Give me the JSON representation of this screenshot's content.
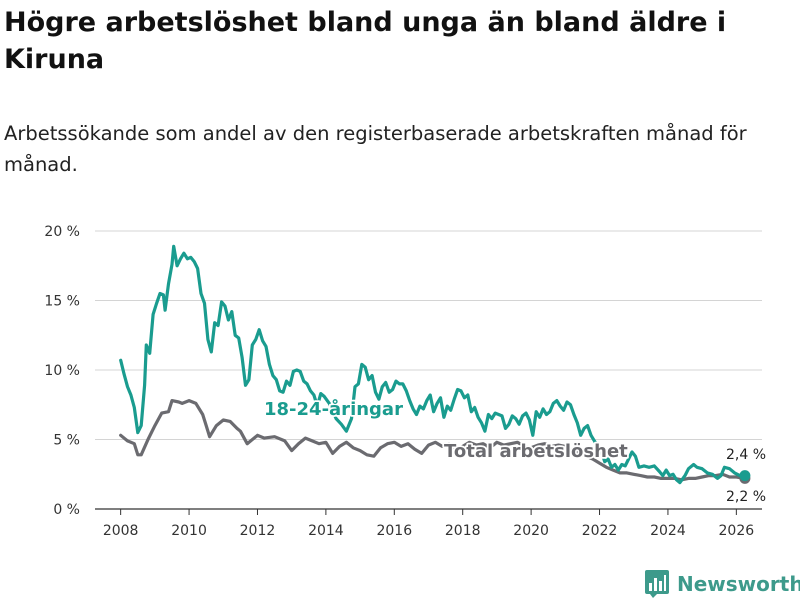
{
  "title": "Högre arbetslöshet bland unga än bland äldre i Kiruna",
  "subtitle": "Arbetssökande som andel av den registerbaserade arbetskraften månad för månad.",
  "brand": "Newsworthy",
  "colors": {
    "youth": "#1a9c8f",
    "total": "#6b6b70",
    "grid": "#d4d4d4",
    "brand": "#3d9a8b"
  },
  "chart_data": {
    "type": "line",
    "xlim": [
      2007.25,
      2026.75
    ],
    "ylim": [
      0,
      20
    ],
    "x_ticks": [
      2008,
      2010,
      2012,
      2014,
      2016,
      2018,
      2020,
      2022,
      2024,
      2026
    ],
    "x_tick_labels": [
      "2008",
      "2010",
      "2012",
      "2014",
      "2016",
      "2018",
      "2020",
      "2022",
      "2024",
      "2026"
    ],
    "y_ticks": [
      0,
      5,
      10,
      15,
      20
    ],
    "y_tick_labels": [
      "0 %",
      "5 %",
      "10 %",
      "15 %",
      "20 %"
    ],
    "series": [
      {
        "name": "Total arbetslöshet",
        "label": "Total arbetslöshet",
        "color": "#6b6b70",
        "end_label": "2,2 %",
        "points": [
          [
            2008.0,
            5.3
          ],
          [
            2008.2,
            4.9
          ],
          [
            2008.4,
            4.7
          ],
          [
            2008.5,
            3.9
          ],
          [
            2008.6,
            3.9
          ],
          [
            2008.8,
            5.0
          ],
          [
            2009.0,
            6.0
          ],
          [
            2009.2,
            6.9
          ],
          [
            2009.4,
            7.0
          ],
          [
            2009.5,
            7.8
          ],
          [
            2009.7,
            7.7
          ],
          [
            2009.8,
            7.6
          ],
          [
            2010.0,
            7.8
          ],
          [
            2010.2,
            7.6
          ],
          [
            2010.4,
            6.8
          ],
          [
            2010.5,
            6.0
          ],
          [
            2010.6,
            5.2
          ],
          [
            2010.8,
            6.0
          ],
          [
            2011.0,
            6.4
          ],
          [
            2011.2,
            6.3
          ],
          [
            2011.4,
            5.8
          ],
          [
            2011.5,
            5.6
          ],
          [
            2011.7,
            4.7
          ],
          [
            2011.9,
            5.1
          ],
          [
            2012.0,
            5.3
          ],
          [
            2012.2,
            5.1
          ],
          [
            2012.5,
            5.2
          ],
          [
            2012.8,
            4.9
          ],
          [
            2013.0,
            4.2
          ],
          [
            2013.2,
            4.7
          ],
          [
            2013.4,
            5.1
          ],
          [
            2013.6,
            4.9
          ],
          [
            2013.8,
            4.7
          ],
          [
            2014.0,
            4.8
          ],
          [
            2014.2,
            4.0
          ],
          [
            2014.4,
            4.5
          ],
          [
            2014.6,
            4.8
          ],
          [
            2014.8,
            4.4
          ],
          [
            2015.0,
            4.2
          ],
          [
            2015.2,
            3.9
          ],
          [
            2015.4,
            3.8
          ],
          [
            2015.6,
            4.4
          ],
          [
            2015.8,
            4.7
          ],
          [
            2016.0,
            4.8
          ],
          [
            2016.2,
            4.5
          ],
          [
            2016.4,
            4.7
          ],
          [
            2016.6,
            4.3
          ],
          [
            2016.8,
            4.0
          ],
          [
            2017.0,
            4.6
          ],
          [
            2017.2,
            4.8
          ],
          [
            2017.4,
            4.5
          ],
          [
            2017.6,
            4.7
          ],
          [
            2017.8,
            4.2
          ],
          [
            2018.0,
            4.5
          ],
          [
            2018.2,
            4.8
          ],
          [
            2018.4,
            4.6
          ],
          [
            2018.6,
            4.7
          ],
          [
            2018.8,
            4.4
          ],
          [
            2019.0,
            4.8
          ],
          [
            2019.2,
            4.6
          ],
          [
            2019.4,
            4.7
          ],
          [
            2019.6,
            4.8
          ],
          [
            2019.8,
            4.5
          ],
          [
            2020.0,
            4.4
          ],
          [
            2020.2,
            4.6
          ],
          [
            2020.4,
            4.7
          ],
          [
            2020.6,
            4.5
          ],
          [
            2020.8,
            4.6
          ],
          [
            2021.0,
            4.5
          ],
          [
            2021.2,
            4.2
          ],
          [
            2021.4,
            4.0
          ],
          [
            2021.6,
            3.8
          ],
          [
            2021.8,
            3.6
          ],
          [
            2022.0,
            3.3
          ],
          [
            2022.2,
            3.0
          ],
          [
            2022.4,
            2.8
          ],
          [
            2022.6,
            2.6
          ],
          [
            2022.8,
            2.6
          ],
          [
            2023.0,
            2.5
          ],
          [
            2023.2,
            2.4
          ],
          [
            2023.4,
            2.3
          ],
          [
            2023.6,
            2.3
          ],
          [
            2023.8,
            2.2
          ],
          [
            2024.0,
            2.2
          ],
          [
            2024.2,
            2.2
          ],
          [
            2024.4,
            2.1
          ],
          [
            2024.6,
            2.2
          ],
          [
            2024.8,
            2.2
          ],
          [
            2025.0,
            2.3
          ],
          [
            2025.2,
            2.4
          ],
          [
            2025.4,
            2.4
          ],
          [
            2025.6,
            2.5
          ],
          [
            2025.8,
            2.3
          ],
          [
            2026.0,
            2.3
          ],
          [
            2026.25,
            2.2
          ]
        ]
      },
      {
        "name": "18-24-åringar",
        "label": "18-24-åringar",
        "color": "#1a9c8f",
        "end_label": "2,4 %",
        "points": [
          [
            2008.0,
            10.7
          ],
          [
            2008.1,
            9.7
          ],
          [
            2008.2,
            8.8
          ],
          [
            2008.3,
            8.2
          ],
          [
            2008.4,
            7.3
          ],
          [
            2008.5,
            5.5
          ],
          [
            2008.6,
            6.0
          ],
          [
            2008.7,
            8.9
          ],
          [
            2008.75,
            11.8
          ],
          [
            2008.85,
            11.2
          ],
          [
            2008.95,
            14.0
          ],
          [
            2009.05,
            14.8
          ],
          [
            2009.15,
            15.5
          ],
          [
            2009.25,
            15.4
          ],
          [
            2009.3,
            14.3
          ],
          [
            2009.4,
            16.2
          ],
          [
            2009.5,
            17.6
          ],
          [
            2009.55,
            18.9
          ],
          [
            2009.65,
            17.5
          ],
          [
            2009.75,
            18.0
          ],
          [
            2009.85,
            18.4
          ],
          [
            2009.95,
            18.0
          ],
          [
            2010.05,
            18.1
          ],
          [
            2010.15,
            17.8
          ],
          [
            2010.25,
            17.3
          ],
          [
            2010.35,
            15.5
          ],
          [
            2010.45,
            14.8
          ],
          [
            2010.55,
            12.2
          ],
          [
            2010.65,
            11.3
          ],
          [
            2010.75,
            13.4
          ],
          [
            2010.85,
            13.2
          ],
          [
            2010.95,
            14.9
          ],
          [
            2011.05,
            14.6
          ],
          [
            2011.15,
            13.6
          ],
          [
            2011.25,
            14.2
          ],
          [
            2011.35,
            12.5
          ],
          [
            2011.45,
            12.3
          ],
          [
            2011.55,
            10.9
          ],
          [
            2011.65,
            8.9
          ],
          [
            2011.75,
            9.3
          ],
          [
            2011.85,
            11.8
          ],
          [
            2011.95,
            12.2
          ],
          [
            2012.05,
            12.9
          ],
          [
            2012.15,
            12.1
          ],
          [
            2012.25,
            11.7
          ],
          [
            2012.35,
            10.4
          ],
          [
            2012.45,
            9.6
          ],
          [
            2012.55,
            9.3
          ],
          [
            2012.65,
            8.5
          ],
          [
            2012.75,
            8.4
          ],
          [
            2012.85,
            9.2
          ],
          [
            2012.95,
            8.9
          ],
          [
            2013.05,
            9.9
          ],
          [
            2013.15,
            10.0
          ],
          [
            2013.25,
            9.9
          ],
          [
            2013.35,
            9.2
          ],
          [
            2013.45,
            9.0
          ],
          [
            2013.55,
            8.5
          ],
          [
            2013.65,
            8.2
          ],
          [
            2013.75,
            7.4
          ],
          [
            2013.85,
            8.3
          ],
          [
            2013.95,
            8.1
          ],
          [
            2014.1,
            7.6
          ],
          [
            2014.3,
            6.5
          ],
          [
            2014.45,
            6.1
          ],
          [
            2014.6,
            5.6
          ],
          [
            2014.75,
            6.5
          ],
          [
            2014.85,
            8.8
          ],
          [
            2014.95,
            9.0
          ],
          [
            2015.05,
            10.4
          ],
          [
            2015.15,
            10.2
          ],
          [
            2015.25,
            9.3
          ],
          [
            2015.35,
            9.6
          ],
          [
            2015.45,
            8.4
          ],
          [
            2015.55,
            7.9
          ],
          [
            2015.65,
            8.8
          ],
          [
            2015.75,
            9.1
          ],
          [
            2015.85,
            8.4
          ],
          [
            2015.95,
            8.6
          ],
          [
            2016.05,
            9.2
          ],
          [
            2016.15,
            9.0
          ],
          [
            2016.25,
            9.0
          ],
          [
            2016.35,
            8.5
          ],
          [
            2016.45,
            7.8
          ],
          [
            2016.55,
            7.2
          ],
          [
            2016.65,
            6.8
          ],
          [
            2016.75,
            7.4
          ],
          [
            2016.85,
            7.2
          ],
          [
            2016.95,
            7.8
          ],
          [
            2017.05,
            8.2
          ],
          [
            2017.15,
            7.0
          ],
          [
            2017.25,
            7.6
          ],
          [
            2017.35,
            8.0
          ],
          [
            2017.45,
            6.6
          ],
          [
            2017.55,
            7.4
          ],
          [
            2017.65,
            7.1
          ],
          [
            2017.75,
            7.9
          ],
          [
            2017.85,
            8.6
          ],
          [
            2017.95,
            8.5
          ],
          [
            2018.05,
            8.0
          ],
          [
            2018.15,
            8.2
          ],
          [
            2018.25,
            7.0
          ],
          [
            2018.35,
            7.3
          ],
          [
            2018.45,
            6.6
          ],
          [
            2018.55,
            6.2
          ],
          [
            2018.65,
            5.6
          ],
          [
            2018.75,
            6.8
          ],
          [
            2018.85,
            6.5
          ],
          [
            2018.95,
            6.9
          ],
          [
            2019.05,
            6.8
          ],
          [
            2019.15,
            6.7
          ],
          [
            2019.25,
            5.8
          ],
          [
            2019.35,
            6.1
          ],
          [
            2019.45,
            6.7
          ],
          [
            2019.55,
            6.5
          ],
          [
            2019.65,
            6.1
          ],
          [
            2019.75,
            6.7
          ],
          [
            2019.85,
            6.9
          ],
          [
            2019.95,
            6.4
          ],
          [
            2020.05,
            5.3
          ],
          [
            2020.15,
            7.0
          ],
          [
            2020.25,
            6.6
          ],
          [
            2020.35,
            7.2
          ],
          [
            2020.45,
            6.8
          ],
          [
            2020.55,
            7.0
          ],
          [
            2020.65,
            7.6
          ],
          [
            2020.75,
            7.8
          ],
          [
            2020.85,
            7.4
          ],
          [
            2020.95,
            7.1
          ],
          [
            2021.05,
            7.7
          ],
          [
            2021.15,
            7.5
          ],
          [
            2021.25,
            6.8
          ],
          [
            2021.35,
            6.2
          ],
          [
            2021.45,
            5.3
          ],
          [
            2021.55,
            5.8
          ],
          [
            2021.65,
            6.0
          ],
          [
            2021.75,
            5.3
          ],
          [
            2021.85,
            4.9
          ],
          [
            2021.95,
            4.5
          ],
          [
            2022.05,
            4.2
          ],
          [
            2022.15,
            3.4
          ],
          [
            2022.25,
            3.6
          ],
          [
            2022.35,
            3.0
          ],
          [
            2022.45,
            3.2
          ],
          [
            2022.55,
            2.8
          ],
          [
            2022.65,
            3.2
          ],
          [
            2022.75,
            3.1
          ],
          [
            2022.85,
            3.6
          ],
          [
            2022.95,
            4.1
          ],
          [
            2023.05,
            3.8
          ],
          [
            2023.15,
            3.0
          ],
          [
            2023.3,
            3.1
          ],
          [
            2023.45,
            3.0
          ],
          [
            2023.6,
            3.1
          ],
          [
            2023.75,
            2.7
          ],
          [
            2023.85,
            2.4
          ],
          [
            2023.95,
            2.8
          ],
          [
            2024.05,
            2.4
          ],
          [
            2024.15,
            2.5
          ],
          [
            2024.25,
            2.1
          ],
          [
            2024.35,
            1.9
          ],
          [
            2024.5,
            2.4
          ],
          [
            2024.6,
            2.9
          ],
          [
            2024.75,
            3.2
          ],
          [
            2024.85,
            3.0
          ],
          [
            2025.0,
            2.9
          ],
          [
            2025.15,
            2.6
          ],
          [
            2025.3,
            2.5
          ],
          [
            2025.45,
            2.2
          ],
          [
            2025.55,
            2.4
          ],
          [
            2025.65,
            3.0
          ],
          [
            2025.8,
            2.9
          ],
          [
            2025.95,
            2.6
          ],
          [
            2026.1,
            2.4
          ],
          [
            2026.25,
            2.4
          ]
        ]
      }
    ]
  }
}
